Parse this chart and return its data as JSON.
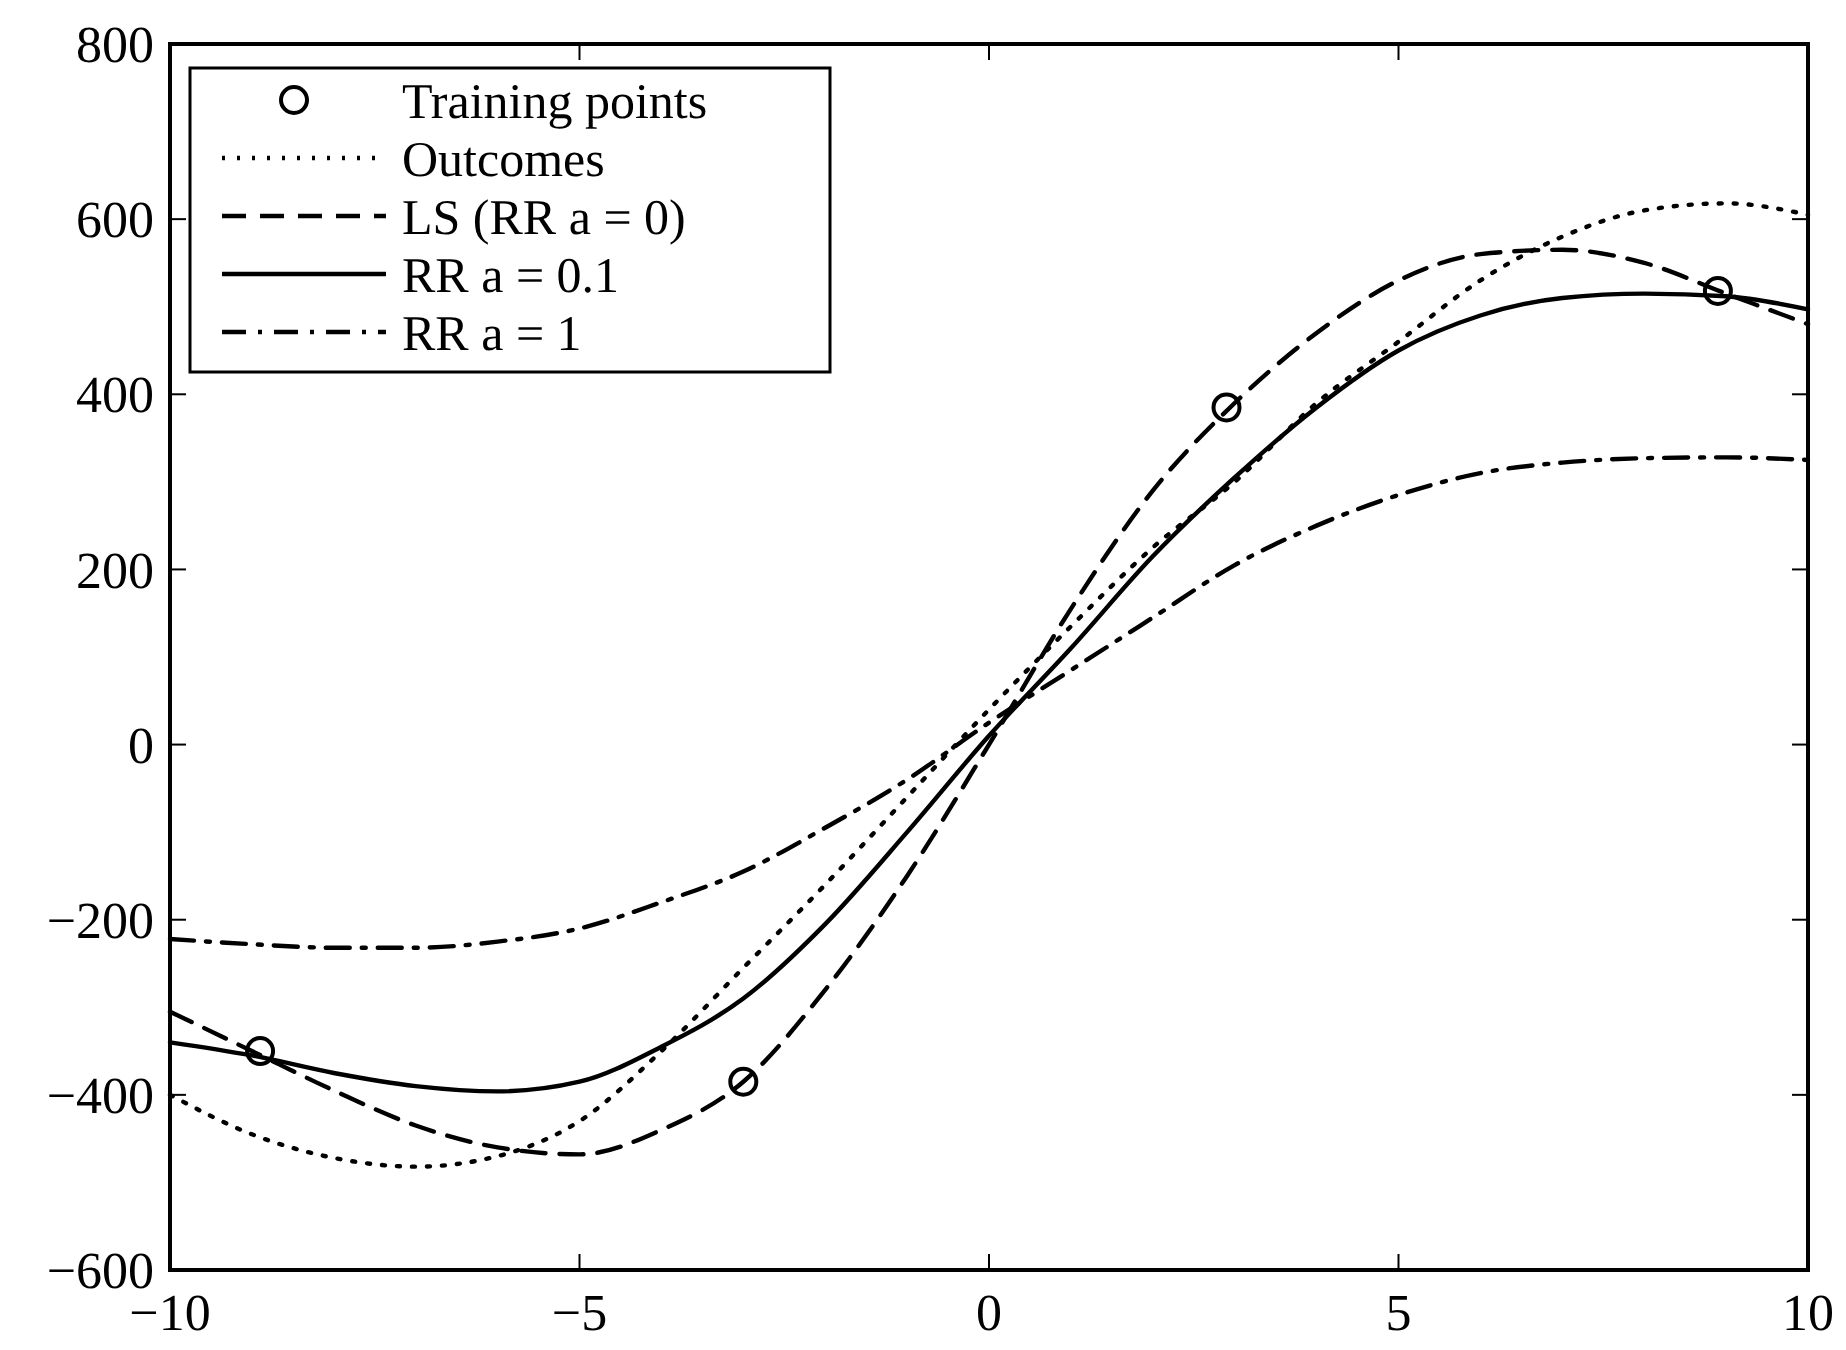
{
  "chart_data": {
    "type": "line",
    "x": [
      -10,
      -9,
      -8,
      -7,
      -6,
      -5,
      -4,
      -3,
      -2,
      -1,
      0,
      1,
      2,
      3,
      4,
      5,
      6,
      7,
      8,
      9,
      10
    ],
    "xlim": [
      -10,
      10
    ],
    "xticks": [
      {
        "value": -10,
        "label": "−10"
      },
      {
        "value": -5,
        "label": "−5"
      },
      0,
      5,
      10
    ],
    "ylim": [
      -600,
      800
    ],
    "yticks": [
      {
        "value": -600,
        "label": "−600"
      },
      {
        "value": -400,
        "label": "−400"
      },
      {
        "value": -200,
        "label": "−200"
      },
      0,
      200,
      400,
      600,
      800
    ],
    "grid": false,
    "legend": "top left",
    "series": [
      {
        "name": "Training points",
        "type": "scatter",
        "marker": "circle",
        "color": "#000000",
        "x": [
          -8.9,
          -3,
          2.9,
          8.9
        ],
        "values": [
          -350,
          -385,
          385,
          518
        ]
      },
      {
        "name": "Outcomes",
        "line_style": "dotted",
        "color": "#000000",
        "values": [
          -400,
          -445,
          -472,
          -482,
          -470,
          -430,
          -350,
          -255,
          -160,
          -60,
          40,
          135,
          225,
          300,
          390,
          460,
          530,
          580,
          610,
          618,
          605
        ]
      },
      {
        "name": "LS (RR a = 0)",
        "line_style": "dashed",
        "color": "#000000",
        "values": [
          -305,
          -350,
          -395,
          -435,
          -460,
          -468,
          -440,
          -385,
          -280,
          -150,
          0,
          155,
          290,
          390,
          470,
          530,
          560,
          565,
          550,
          515,
          480
        ]
      },
      {
        "name": "RR a = 0.1",
        "line_style": "solid",
        "color": "#000000",
        "values": [
          -340,
          -355,
          -375,
          -390,
          -396,
          -385,
          -345,
          -290,
          -205,
          -100,
          10,
          110,
          215,
          305,
          385,
          450,
          490,
          510,
          515,
          512,
          497
        ]
      },
      {
        "name": "RR a = 1",
        "line_style": "dashdot",
        "color": "#000000",
        "values": [
          -222,
          -228,
          -232,
          -232,
          -225,
          -210,
          -180,
          -145,
          -95,
          -40,
          25,
          85,
          145,
          205,
          250,
          285,
          310,
          322,
          327,
          328,
          325
        ]
      }
    ]
  }
}
